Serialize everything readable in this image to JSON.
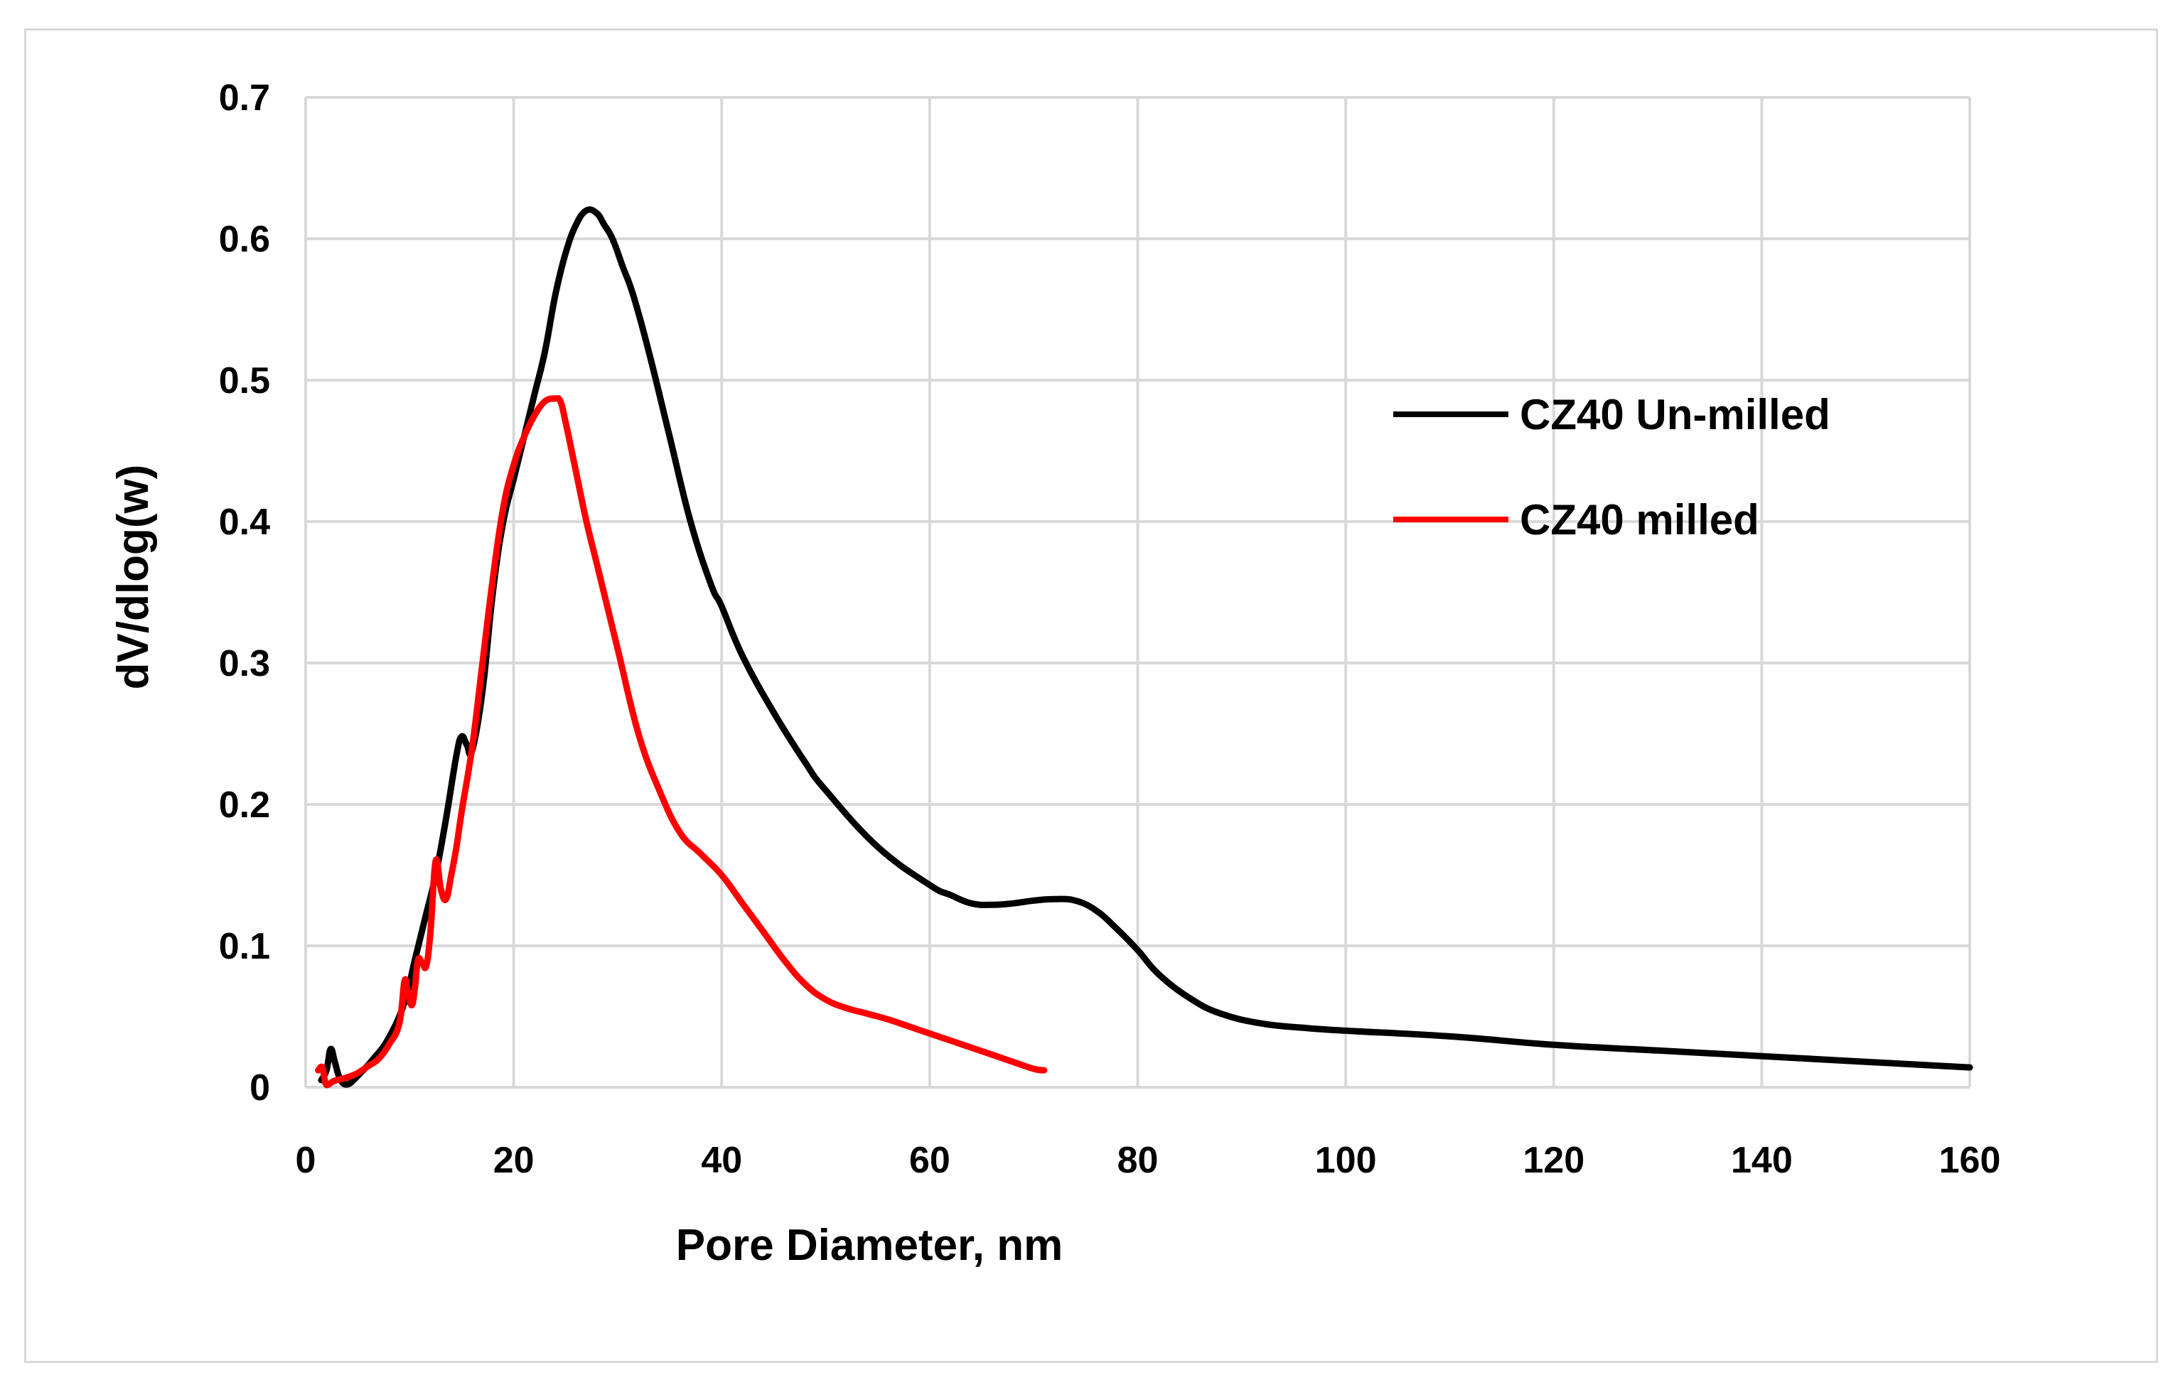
{
  "chart_data": {
    "type": "line",
    "title": "",
    "xlabel": "Pore Diameter, nm",
    "ylabel": "dV/dlog(w)",
    "xlim": [
      0,
      160
    ],
    "ylim": [
      0,
      0.7
    ],
    "xticks": [
      0,
      20,
      40,
      60,
      80,
      100,
      120,
      140,
      160
    ],
    "yticks": [
      0,
      0.1,
      0.2,
      0.3,
      0.4,
      0.5,
      0.6,
      0.7
    ],
    "xtick_labels": [
      "0",
      "20",
      "40",
      "60",
      "80",
      "100",
      "120",
      "140",
      "160"
    ],
    "ytick_labels": [
      "0",
      "0.1",
      "0.2",
      "0.3",
      "0.4",
      "0.5",
      "0.6",
      "0.7"
    ],
    "grid": true,
    "legend_position": "right",
    "series": [
      {
        "name": "CZ40 Un-milled",
        "color": "#000000",
        "x": [
          1.5,
          2.0,
          2.4,
          2.8,
          3.3,
          4.0,
          5.0,
          6.5,
          8.0,
          9.5,
          10.5,
          11.5,
          12.5,
          13.5,
          14.5,
          15.0,
          15.5,
          16.0,
          17.0,
          18.0,
          19.0,
          20.0,
          21.0,
          22.0,
          23.0,
          24.0,
          25.0,
          26.0,
          27.0,
          28.0,
          28.7,
          29.5,
          30.5,
          31.5,
          33.0,
          35.0,
          37.0,
          39.0,
          40.0,
          42.0,
          45.0,
          48.0,
          50.0,
          55.0,
          60.0,
          62.0,
          64.0,
          66.0,
          68.0,
          70.0,
          72.0,
          74.0,
          76.0,
          78.0,
          80.0,
          82.0,
          85.0,
          88.0,
          92.0,
          96.0,
          100.0,
          110.0,
          120.0,
          130.0,
          140.0,
          150.0,
          160.0
        ],
        "y": [
          0.005,
          0.012,
          0.027,
          0.018,
          0.006,
          0.002,
          0.008,
          0.02,
          0.035,
          0.06,
          0.09,
          0.12,
          0.15,
          0.19,
          0.235,
          0.248,
          0.242,
          0.238,
          0.28,
          0.35,
          0.4,
          0.43,
          0.46,
          0.49,
          0.52,
          0.56,
          0.59,
          0.61,
          0.62,
          0.618,
          0.61,
          0.6,
          0.58,
          0.56,
          0.52,
          0.46,
          0.4,
          0.355,
          0.34,
          0.305,
          0.265,
          0.23,
          0.21,
          0.17,
          0.143,
          0.136,
          0.13,
          0.129,
          0.13,
          0.132,
          0.133,
          0.132,
          0.125,
          0.112,
          0.097,
          0.08,
          0.063,
          0.052,
          0.045,
          0.042,
          0.04,
          0.036,
          0.03,
          0.026,
          0.022,
          0.018,
          0.014
        ]
      },
      {
        "name": "CZ40 milled",
        "color": "#ff0000",
        "x": [
          1.2,
          1.6,
          1.9,
          2.2,
          2.6,
          3.0,
          4.0,
          5.0,
          6.0,
          7.0,
          8.0,
          9.0,
          9.5,
          9.8,
          10.2,
          10.5,
          10.8,
          11.2,
          11.6,
          12.0,
          12.5,
          13.0,
          13.5,
          14.0,
          14.5,
          15.0,
          16.0,
          17.0,
          18.0,
          19.0,
          20.0,
          21.0,
          22.0,
          23.0,
          24.0,
          24.5,
          25.0,
          26.0,
          27.0,
          28.0,
          30.0,
          32.0,
          34.0,
          36.0,
          38.0,
          40.0,
          42.0,
          44.0,
          46.0,
          48.0,
          50.0,
          52.0,
          54.0,
          56.0,
          58.0,
          60.0,
          62.0,
          64.0,
          66.0,
          68.0,
          70.0,
          71.0
        ],
        "y": [
          0.012,
          0.014,
          0.003,
          0.002,
          0.004,
          0.005,
          0.007,
          0.01,
          0.015,
          0.02,
          0.03,
          0.045,
          0.075,
          0.068,
          0.058,
          0.07,
          0.09,
          0.088,
          0.086,
          0.11,
          0.16,
          0.14,
          0.133,
          0.15,
          0.17,
          0.195,
          0.24,
          0.3,
          0.36,
          0.41,
          0.44,
          0.46,
          0.475,
          0.485,
          0.487,
          0.485,
          0.47,
          0.435,
          0.4,
          0.37,
          0.31,
          0.25,
          0.21,
          0.18,
          0.165,
          0.15,
          0.13,
          0.11,
          0.09,
          0.073,
          0.062,
          0.056,
          0.052,
          0.048,
          0.043,
          0.038,
          0.033,
          0.028,
          0.023,
          0.018,
          0.013,
          0.012
        ]
      }
    ]
  }
}
